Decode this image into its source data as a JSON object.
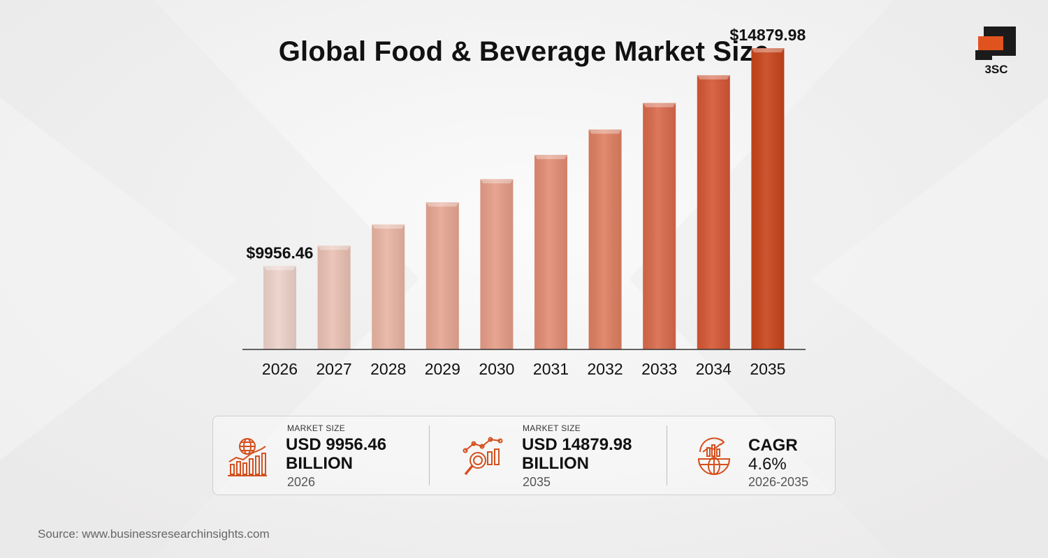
{
  "title": "Global Food & Beverage Market Size",
  "logo": {
    "text": "3SC"
  },
  "chart_data": {
    "type": "bar",
    "categories": [
      "2026",
      "2027",
      "2028",
      "2029",
      "2030",
      "2031",
      "2032",
      "2033",
      "2034",
      "2035"
    ],
    "values": [
      9956.46,
      10414.46,
      10893.53,
      11394.63,
      11918.79,
      12467.05,
      13040.53,
      13640.39,
      14267.85,
      14879.98
    ],
    "data_labels": [
      {
        "index": 0,
        "text": "$9956.46"
      },
      {
        "index": 9,
        "text": "$14879.98"
      }
    ],
    "colors": [
      "#ecd2c9",
      "#e9c0b2",
      "#e8b4a2",
      "#e6a692",
      "#e59c86",
      "#e28c72",
      "#df7e60",
      "#d9694b",
      "#d45634",
      "#c8441a"
    ]
  },
  "stats": [
    {
      "label": "MARKET SIZE",
      "value_line1": "USD 9956.46",
      "value_line2": "BILLION",
      "sub": "2026",
      "icon": "globe-growth-chart-icon"
    },
    {
      "label": "MARKET SIZE",
      "value_line1": "USD 14879.98",
      "value_line2": "BILLION",
      "sub": "2035",
      "icon": "analytics-magnifier-icon"
    },
    {
      "head": "CAGR",
      "value": "4.6%",
      "sub": "2026-2035",
      "icon": "globe-trend-icon"
    }
  ],
  "accent_color": "#d4501e",
  "source": "Source: www.businessresearchinsights.com"
}
